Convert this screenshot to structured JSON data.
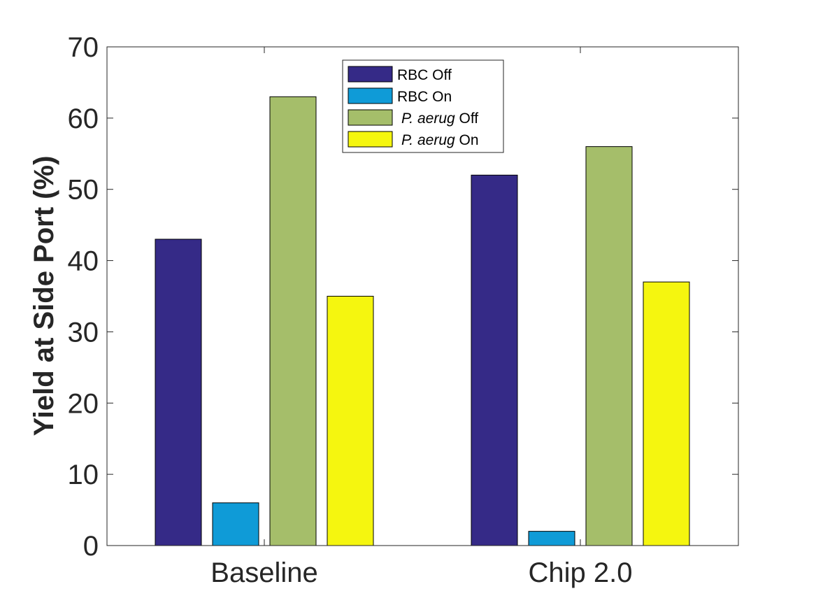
{
  "chart_data": {
    "type": "bar",
    "title": "",
    "xlabel": "",
    "ylabel": "Yield at Side Port (%)",
    "ylim": [
      0,
      70
    ],
    "yticks": [
      0,
      10,
      20,
      30,
      40,
      50,
      60,
      70
    ],
    "grid": false,
    "legend_position": "top-center",
    "categories": [
      "Baseline",
      "Chip 2.0"
    ],
    "series": [
      {
        "name": "RBC Off",
        "name_italic": "",
        "name_plain": "RBC Off",
        "color": "#352a87",
        "values": [
          43,
          52
        ]
      },
      {
        "name": "RBC On",
        "name_italic": "",
        "name_plain": "RBC On",
        "color": "#0f9bd7",
        "values": [
          6,
          2
        ]
      },
      {
        "name": "P. aerug Off",
        "name_italic": "P. aerug",
        "name_plain": " Off",
        "color": "#a5be6a",
        "values": [
          63,
          56
        ]
      },
      {
        "name": "P. aerug On",
        "name_italic": "P. aerug",
        "name_plain": " On",
        "color": "#f5f60f",
        "values": [
          35,
          37
        ]
      }
    ]
  }
}
